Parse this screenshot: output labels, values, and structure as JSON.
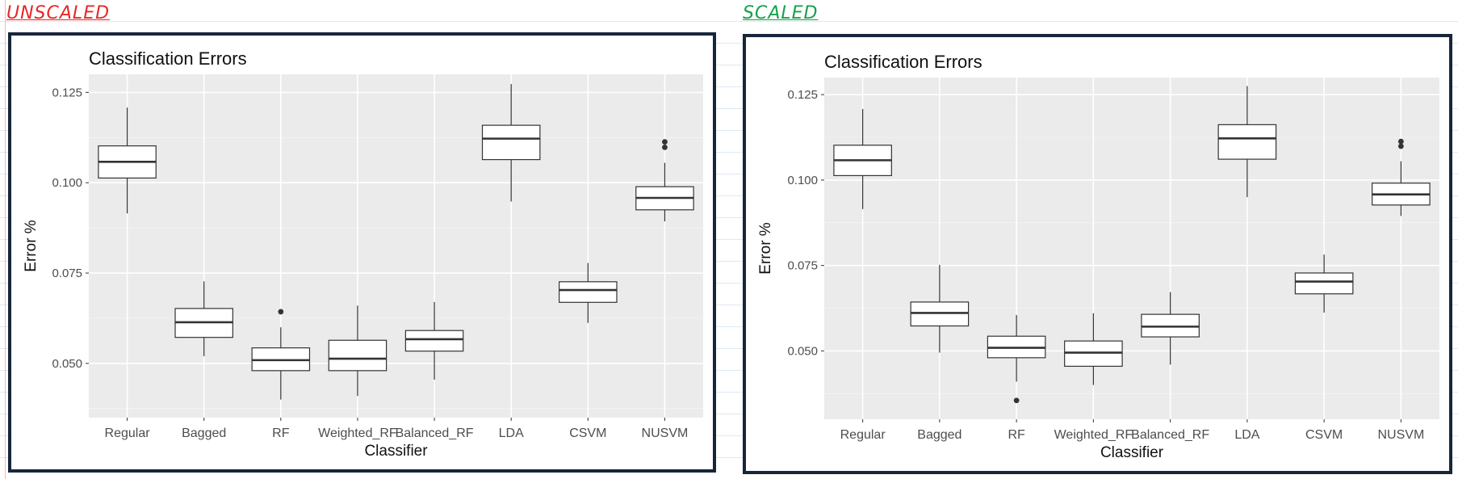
{
  "annotations": {
    "left_label": "UNSCALED",
    "right_label": "SCALED",
    "left_color": "#e82727",
    "right_color": "#13a24a"
  },
  "colors": {
    "panel_bg": "#ebebeb",
    "grid_major": "#ffffff",
    "box_fill": "#ffffff",
    "box_line": "#333333",
    "frame_border": "#17263a"
  },
  "chart_data": [
    {
      "type": "boxplot",
      "title": "Classification Errors",
      "xlabel": "Classifier",
      "ylabel": "Error %",
      "ylim": [
        0.035,
        0.13
      ],
      "yticks": [
        "0.050",
        "0.075",
        "0.100",
        "0.125"
      ],
      "ytick_values": [
        0.05,
        0.075,
        0.1,
        0.125
      ],
      "grid": true,
      "legend": "none",
      "categories": [
        "Regular",
        "Bagged",
        "RF",
        "Weighted_RF",
        "Balanced_RF",
        "LDA",
        "CSVM",
        "NUSVM"
      ],
      "boxes": [
        {
          "min": 0.0915,
          "q1": 0.1013,
          "median": 0.1058,
          "q3": 0.1102,
          "max": 0.1208,
          "outliers": []
        },
        {
          "min": 0.052,
          "q1": 0.0572,
          "median": 0.0614,
          "q3": 0.0652,
          "max": 0.0727,
          "outliers": []
        },
        {
          "min": 0.04,
          "q1": 0.048,
          "median": 0.0509,
          "q3": 0.0543,
          "max": 0.06,
          "outliers": [
            0.0643
          ]
        },
        {
          "min": 0.041,
          "q1": 0.048,
          "median": 0.0513,
          "q3": 0.0564,
          "max": 0.066,
          "outliers": []
        },
        {
          "min": 0.0455,
          "q1": 0.0534,
          "median": 0.0567,
          "q3": 0.0591,
          "max": 0.067,
          "outliers": []
        },
        {
          "min": 0.0948,
          "q1": 0.1064,
          "median": 0.1122,
          "q3": 0.1159,
          "max": 0.1273,
          "outliers": []
        },
        {
          "min": 0.0612,
          "q1": 0.0669,
          "median": 0.0703,
          "q3": 0.0726,
          "max": 0.0778,
          "outliers": []
        },
        {
          "min": 0.0893,
          "q1": 0.0925,
          "median": 0.0958,
          "q3": 0.0989,
          "max": 0.1055,
          "outliers": [
            0.1098,
            0.1113
          ]
        }
      ]
    },
    {
      "type": "boxplot",
      "title": "Classification Errors",
      "xlabel": "Classifier",
      "ylabel": "Error %",
      "ylim": [
        0.03,
        0.13
      ],
      "yticks": [
        "0.050",
        "0.075",
        "0.100",
        "0.125"
      ],
      "ytick_values": [
        0.05,
        0.075,
        0.1,
        0.125
      ],
      "grid": true,
      "legend": "none",
      "categories": [
        "Regular",
        "Bagged",
        "RF",
        "Weighted_RF",
        "Balanced_RF",
        "LDA",
        "CSVM",
        "NUSVM"
      ],
      "boxes": [
        {
          "min": 0.0915,
          "q1": 0.1013,
          "median": 0.1058,
          "q3": 0.1102,
          "max": 0.1208,
          "outliers": []
        },
        {
          "min": 0.0495,
          "q1": 0.0573,
          "median": 0.0611,
          "q3": 0.0643,
          "max": 0.0752,
          "outliers": []
        },
        {
          "min": 0.041,
          "q1": 0.048,
          "median": 0.0509,
          "q3": 0.0543,
          "max": 0.0605,
          "outliers": [
            0.0355
          ]
        },
        {
          "min": 0.04,
          "q1": 0.0455,
          "median": 0.0495,
          "q3": 0.0529,
          "max": 0.061,
          "outliers": []
        },
        {
          "min": 0.046,
          "q1": 0.0541,
          "median": 0.0571,
          "q3": 0.0607,
          "max": 0.0672,
          "outliers": []
        },
        {
          "min": 0.095,
          "q1": 0.1061,
          "median": 0.1122,
          "q3": 0.1162,
          "max": 0.1275,
          "outliers": []
        },
        {
          "min": 0.0612,
          "q1": 0.0667,
          "median": 0.0703,
          "q3": 0.0728,
          "max": 0.0782,
          "outliers": []
        },
        {
          "min": 0.0895,
          "q1": 0.0927,
          "median": 0.0958,
          "q3": 0.0991,
          "max": 0.1055,
          "outliers": [
            0.1099,
            0.1113
          ]
        }
      ]
    }
  ]
}
